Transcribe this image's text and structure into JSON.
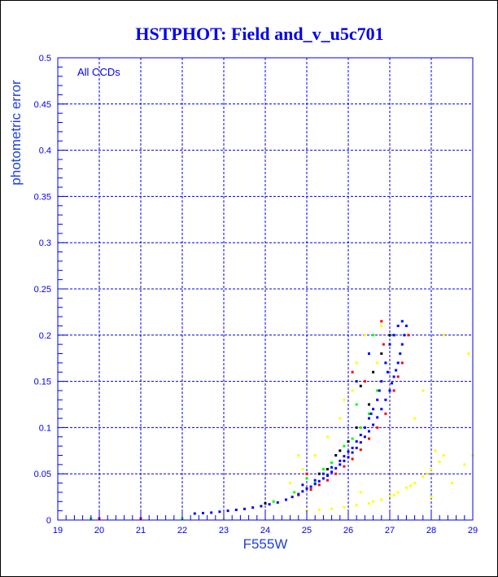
{
  "chart_data": {
    "type": "scatter",
    "title": "HSTPHOT: Field and_v_u5c701",
    "xlabel": "F555W",
    "ylabel": "photometric error",
    "annotation": "All CCDs",
    "xlim": [
      19,
      29
    ],
    "ylim": [
      0,
      0.5
    ],
    "grid": true,
    "xticks": [
      "19",
      "20",
      "21",
      "22",
      "23",
      "24",
      "25",
      "26",
      "27",
      "28",
      "29"
    ],
    "yticks": [
      "0",
      "0.05",
      "0.1",
      "0.15",
      "0.2",
      "0.25",
      "0.3",
      "0.35",
      "0.4",
      "0.45",
      "0.5"
    ],
    "series": [
      {
        "name": "blue",
        "color": "#0000ff",
        "points": [
          [
            22.3,
            0.007
          ],
          [
            22.5,
            0.0075
          ],
          [
            22.7,
            0.008
          ],
          [
            22.9,
            0.009
          ],
          [
            23.1,
            0.01
          ],
          [
            23.3,
            0.011
          ],
          [
            23.5,
            0.012
          ],
          [
            23.7,
            0.0135
          ],
          [
            23.9,
            0.015
          ],
          [
            24.1,
            0.017
          ],
          [
            24.3,
            0.019
          ],
          [
            24.5,
            0.022
          ],
          [
            24.65,
            0.025
          ],
          [
            24.8,
            0.028
          ],
          [
            24.9,
            0.031
          ],
          [
            25.0,
            0.034
          ],
          [
            25.1,
            0.036
          ],
          [
            25.2,
            0.039
          ],
          [
            25.3,
            0.042
          ],
          [
            25.4,
            0.045
          ],
          [
            25.5,
            0.048
          ],
          [
            25.6,
            0.052
          ],
          [
            25.7,
            0.056
          ],
          [
            25.8,
            0.06
          ],
          [
            25.9,
            0.064
          ],
          [
            26.0,
            0.068
          ],
          [
            26.1,
            0.073
          ],
          [
            26.2,
            0.078
          ],
          [
            26.3,
            0.084
          ],
          [
            26.4,
            0.09
          ],
          [
            26.5,
            0.096
          ],
          [
            26.6,
            0.103
          ],
          [
            26.7,
            0.111
          ],
          [
            26.8,
            0.12
          ],
          [
            26.9,
            0.13
          ],
          [
            27.0,
            0.14
          ],
          [
            27.05,
            0.148
          ],
          [
            27.1,
            0.155
          ],
          [
            27.15,
            0.162
          ],
          [
            27.2,
            0.17
          ],
          [
            27.25,
            0.18
          ],
          [
            27.3,
            0.19
          ],
          [
            27.35,
            0.2
          ],
          [
            27.4,
            0.21
          ],
          [
            27.2,
            0.21
          ],
          [
            27.1,
            0.2
          ],
          [
            27.0,
            0.19
          ],
          [
            26.9,
            0.17
          ],
          [
            26.8,
            0.15
          ],
          [
            26.7,
            0.13
          ],
          [
            26.6,
            0.12
          ],
          [
            26.5,
            0.11
          ],
          [
            26.4,
            0.1
          ],
          [
            26.3,
            0.092
          ],
          [
            26.2,
            0.085
          ],
          [
            26.1,
            0.078
          ],
          [
            26.0,
            0.074
          ],
          [
            25.9,
            0.069
          ],
          [
            25.8,
            0.064
          ],
          [
            25.6,
            0.057
          ],
          [
            25.4,
            0.05
          ],
          [
            25.2,
            0.043
          ],
          [
            27.3,
            0.215
          ],
          [
            26.95,
            0.16
          ],
          [
            26.75,
            0.14
          ],
          [
            26.55,
            0.115
          ],
          [
            24.9,
            0.038
          ],
          [
            26.2,
            0.15
          ],
          [
            26.5,
            0.18
          ]
        ]
      },
      {
        "name": "red",
        "color": "#ff0000",
        "points": [
          [
            25.1,
            0.033
          ],
          [
            25.3,
            0.038
          ],
          [
            25.5,
            0.043
          ],
          [
            25.7,
            0.05
          ],
          [
            25.9,
            0.058
          ],
          [
            26.1,
            0.066
          ],
          [
            26.3,
            0.076
          ],
          [
            26.5,
            0.088
          ],
          [
            26.7,
            0.1
          ],
          [
            26.9,
            0.115
          ],
          [
            27.1,
            0.14
          ],
          [
            27.3,
            0.17
          ],
          [
            27.45,
            0.2
          ],
          [
            24.8,
            0.027
          ],
          [
            26.85,
            0.19
          ],
          [
            26.4,
            0.15
          ],
          [
            26.1,
            0.16
          ],
          [
            25.0,
            0.05
          ],
          [
            20.0,
            0.0005
          ],
          [
            21.0,
            0.0005
          ],
          [
            26.8,
            0.215
          ],
          [
            27.2,
            0.155
          ]
        ]
      },
      {
        "name": "green",
        "color": "#00ff00",
        "points": [
          [
            24.2,
            0.02
          ],
          [
            24.7,
            0.03
          ],
          [
            25.2,
            0.04
          ],
          [
            25.4,
            0.055
          ],
          [
            25.6,
            0.062
          ],
          [
            25.9,
            0.08
          ],
          [
            26.1,
            0.088
          ],
          [
            26.3,
            0.1
          ],
          [
            26.5,
            0.115
          ],
          [
            26.7,
            0.14
          ],
          [
            26.9,
            0.17
          ],
          [
            27.1,
            0.2
          ],
          [
            26.6,
            0.2
          ],
          [
            26.2,
            0.125
          ],
          [
            25.0,
            0.045
          ],
          [
            19.8,
            0.0005
          ],
          [
            22.0,
            0.0005
          ]
        ]
      },
      {
        "name": "black",
        "color": "#000000",
        "points": [
          [
            25.3,
            0.05
          ],
          [
            25.5,
            0.055
          ],
          [
            25.8,
            0.075
          ],
          [
            26.0,
            0.085
          ],
          [
            26.2,
            0.1
          ],
          [
            26.5,
            0.125
          ],
          [
            26.6,
            0.16
          ],
          [
            26.8,
            0.18
          ],
          [
            27.0,
            0.2
          ],
          [
            25.7,
            0.07
          ],
          [
            26.3,
            0.145
          ],
          [
            24.0,
            0.018
          ]
        ]
      },
      {
        "name": "yellow",
        "color": "#ffff00",
        "points": [
          [
            25.0,
            0.01
          ],
          [
            25.3,
            0.011
          ],
          [
            25.6,
            0.012
          ],
          [
            25.9,
            0.014
          ],
          [
            26.2,
            0.016
          ],
          [
            26.5,
            0.018
          ],
          [
            26.8,
            0.022
          ],
          [
            27.0,
            0.026
          ],
          [
            27.2,
            0.03
          ],
          [
            27.4,
            0.035
          ],
          [
            27.6,
            0.04
          ],
          [
            27.8,
            0.047
          ],
          [
            28.0,
            0.055
          ],
          [
            28.2,
            0.063
          ],
          [
            28.3,
            0.07
          ],
          [
            28.1,
            0.075
          ],
          [
            27.9,
            0.05
          ],
          [
            27.5,
            0.037
          ],
          [
            27.1,
            0.027
          ],
          [
            26.6,
            0.02
          ],
          [
            28.8,
            0.06
          ],
          [
            29.0,
            0.07
          ],
          [
            28.5,
            0.04
          ],
          [
            28.0,
            0.025
          ],
          [
            28.3,
            0.2
          ],
          [
            28.9,
            0.18
          ],
          [
            27.6,
            0.11
          ],
          [
            27.8,
            0.14
          ],
          [
            26.2,
            0.17
          ],
          [
            26.4,
            0.2
          ],
          [
            26.1,
            0.14
          ],
          [
            25.8,
            0.11
          ],
          [
            25.5,
            0.09
          ],
          [
            25.2,
            0.07
          ],
          [
            24.9,
            0.055
          ],
          [
            24.6,
            0.04
          ],
          [
            26.8,
            0.21
          ],
          [
            25.9,
            0.13
          ],
          [
            26.7,
            0.17
          ],
          [
            27.0,
            0.19
          ],
          [
            23.0,
            0.0005
          ],
          [
            26.3,
            0.03
          ],
          [
            24.8,
            0.07
          ]
        ]
      }
    ]
  }
}
